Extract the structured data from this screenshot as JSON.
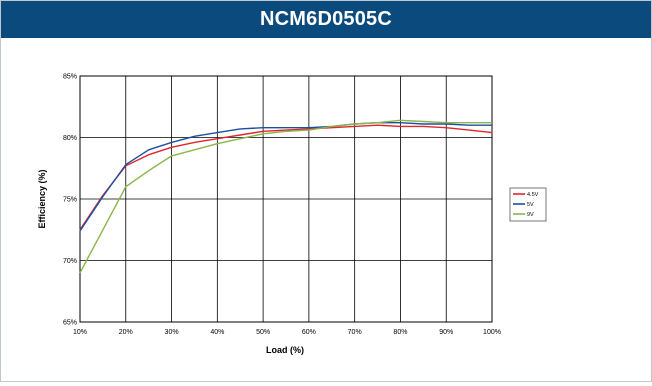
{
  "header": {
    "title": "NCM6D0505C"
  },
  "colors": {
    "header_bg": "#0b4a7d",
    "header_text": "#ffffff",
    "grid": "#000000",
    "series_4_5V": "#e0262d",
    "series_5V": "#1c4fa0",
    "series_9V": "#8ab54a"
  },
  "chart_data": {
    "type": "line",
    "title": "",
    "xlabel": "Load (%)",
    "ylabel": "Efficiency (%)",
    "xlim": [
      10,
      100
    ],
    "ylim": [
      65,
      85
    ],
    "x_ticks": [
      "10%",
      "20%",
      "30%",
      "40%",
      "50%",
      "60%",
      "70%",
      "80%",
      "90%",
      "100%"
    ],
    "y_ticks": [
      "65%",
      "70%",
      "75%",
      "80%",
      "85%"
    ],
    "grid": true,
    "legend_position": "right",
    "series": [
      {
        "name": "4.5V",
        "color": "#e0262d",
        "x": [
          10,
          15,
          20,
          25,
          30,
          35,
          40,
          45,
          50,
          55,
          60,
          65,
          70,
          75,
          80,
          85,
          90,
          95,
          100
        ],
        "y": [
          72.5,
          75.3,
          77.7,
          78.6,
          79.2,
          79.6,
          79.9,
          80.2,
          80.5,
          80.6,
          80.7,
          80.8,
          80.9,
          81.0,
          80.9,
          80.9,
          80.8,
          80.6,
          80.4
        ]
      },
      {
        "name": "5V",
        "color": "#1c4fa0",
        "x": [
          10,
          15,
          20,
          25,
          30,
          35,
          40,
          45,
          50,
          55,
          60,
          65,
          70,
          75,
          80,
          85,
          90,
          95,
          100
        ],
        "y": [
          72.4,
          75.2,
          77.8,
          79.0,
          79.6,
          80.1,
          80.4,
          80.7,
          80.8,
          80.8,
          80.8,
          80.9,
          81.1,
          81.2,
          81.2,
          81.1,
          81.1,
          81.0,
          81.0
        ]
      },
      {
        "name": "9V",
        "color": "#8ab54a",
        "x": [
          10,
          15,
          20,
          25,
          30,
          35,
          40,
          45,
          50,
          55,
          60,
          65,
          70,
          75,
          80,
          85,
          90,
          95,
          100
        ],
        "y": [
          69.0,
          72.5,
          76.0,
          77.3,
          78.5,
          79.0,
          79.5,
          79.9,
          80.3,
          80.5,
          80.6,
          80.9,
          81.1,
          81.2,
          81.4,
          81.3,
          81.2,
          81.2,
          81.2
        ]
      }
    ]
  }
}
